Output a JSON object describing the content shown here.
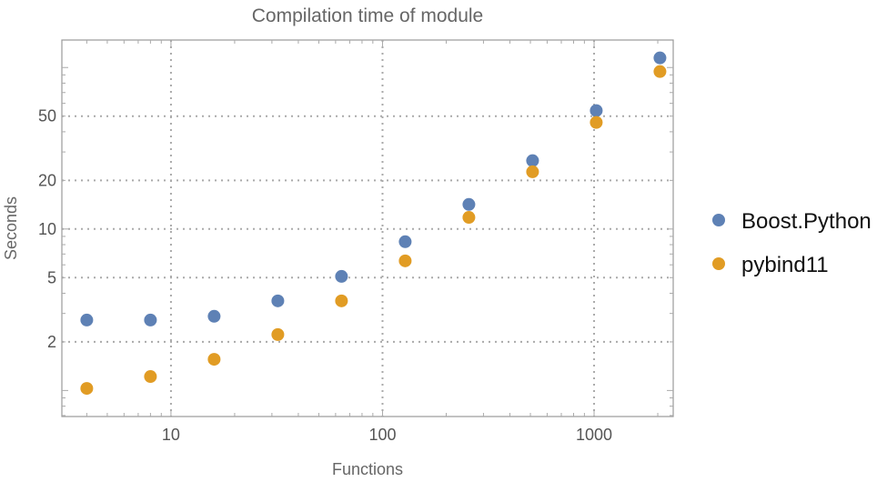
{
  "chart_data": {
    "type": "scatter",
    "title": "Compilation time of module",
    "xlabel": "Functions",
    "ylabel": "Seconds",
    "x_scale": "log",
    "y_scale": "log",
    "xlim": [
      3.05,
      2366
    ],
    "ylim": [
      0.69,
      148
    ],
    "x_ticks": [
      10,
      100,
      1000
    ],
    "x_tick_labels": [
      "10",
      "100",
      "1000"
    ],
    "y_ticks": [
      2,
      5,
      10,
      20,
      50
    ],
    "y_tick_labels": [
      "2",
      "5",
      "10",
      "20",
      "50"
    ],
    "grid": true,
    "legend_position": "right",
    "x": [
      4,
      8,
      16,
      32,
      64,
      128,
      256,
      512,
      1024,
      2048
    ],
    "series": [
      {
        "name": "Boost.Python",
        "color": "#5E81B5",
        "values": [
          2.73,
          2.73,
          2.88,
          3.59,
          5.09,
          8.34,
          14.2,
          26.5,
          54.1,
          114.7
        ]
      },
      {
        "name": "pybind11",
        "color": "#E19C24",
        "values": [
          1.03,
          1.22,
          1.56,
          2.22,
          3.59,
          6.35,
          11.8,
          22.6,
          45.7,
          94.4
        ]
      }
    ]
  }
}
